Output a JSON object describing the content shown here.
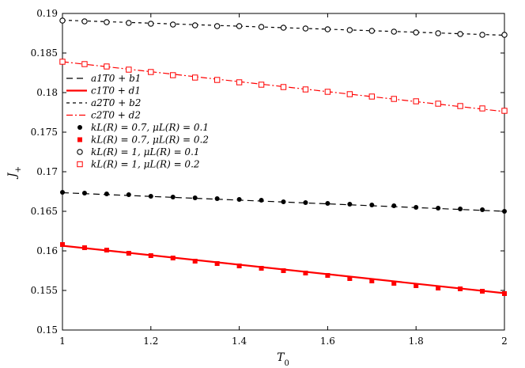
{
  "chart_data": {
    "type": "line",
    "xlabel": "T0",
    "ylabel": "J+",
    "xlim": [
      1,
      2
    ],
    "ylim": [
      0.15,
      0.19
    ],
    "xticks": [
      "1",
      "1.2",
      "1.4",
      "1.6",
      "1.8",
      "2"
    ],
    "yticks": [
      "0.15",
      "0.155",
      "0.16",
      "0.165",
      "0.17",
      "0.175",
      "0.18",
      "0.185",
      "0.19"
    ],
    "grid": false,
    "legend_position": "center-left",
    "legend": [
      "a1T0 + b1",
      "c1T0 + d1",
      "a2T0 + b2",
      "c2T0 + d2",
      "kL(R) = 0.7, μL(R) = 0.1",
      "kL(R) = 0.7, μL(R) = 0.2",
      "kL(R) = 1, μL(R) = 0.1",
      "kL(R) = 1, μL(R) = 0.2"
    ],
    "fit_lines": [
      {
        "legend_index": 0,
        "color": "#000000",
        "dash": "8,5",
        "width": 1.2,
        "x": [
          1,
          2
        ],
        "y": [
          0.16735,
          0.165
        ]
      },
      {
        "legend_index": 1,
        "color": "#ff0000",
        "dash": "",
        "width": 2.2,
        "x": [
          1,
          2
        ],
        "y": [
          0.16065,
          0.15465
        ]
      },
      {
        "legend_index": 2,
        "color": "#000000",
        "dash": "4,4",
        "width": 1.2,
        "x": [
          1,
          2
        ],
        "y": [
          0.18915,
          0.18725
        ]
      },
      {
        "legend_index": 3,
        "color": "#ff0000",
        "dash": "8,3,2,3",
        "width": 1.2,
        "x": [
          1,
          2
        ],
        "y": [
          0.1839,
          0.1776
        ]
      }
    ],
    "x": [
      1.0,
      1.05,
      1.1,
      1.15,
      1.2,
      1.25,
      1.3,
      1.35,
      1.4,
      1.45,
      1.5,
      1.55,
      1.6,
      1.65,
      1.7,
      1.75,
      1.8,
      1.85,
      1.9,
      1.95,
      2.0
    ],
    "series": [
      {
        "legend_index": 4,
        "marker": "filled-circle",
        "color": "#000000",
        "values": [
          0.1674,
          0.1673,
          0.1672,
          0.1671,
          0.1669,
          0.1668,
          0.1667,
          0.1666,
          0.1665,
          0.1664,
          0.1662,
          0.1661,
          0.166,
          0.1659,
          0.1658,
          0.1657,
          0.1655,
          0.1654,
          0.1653,
          0.1652,
          0.165
        ]
      },
      {
        "legend_index": 5,
        "marker": "filled-square",
        "color": "#ff0000",
        "values": [
          0.1608,
          0.1604,
          0.1601,
          0.1597,
          0.1594,
          0.1591,
          0.1587,
          0.1584,
          0.1581,
          0.1578,
          0.1575,
          0.1572,
          0.1569,
          0.1565,
          0.1562,
          0.1559,
          0.1556,
          0.1553,
          0.1552,
          0.1549,
          0.1546
        ]
      },
      {
        "legend_index": 6,
        "marker": "open-circle",
        "color": "#000000",
        "values": [
          0.1891,
          0.189,
          0.1889,
          0.1888,
          0.1887,
          0.1886,
          0.1885,
          0.1884,
          0.1884,
          0.1883,
          0.1882,
          0.1881,
          0.188,
          0.1879,
          0.1878,
          0.1877,
          0.1876,
          0.1875,
          0.1874,
          0.1873,
          0.1873
        ]
      },
      {
        "legend_index": 7,
        "marker": "open-square",
        "color": "#ff0000",
        "values": [
          0.1839,
          0.1836,
          0.1833,
          0.1829,
          0.1826,
          0.1822,
          0.1819,
          0.1816,
          0.1813,
          0.181,
          0.1807,
          0.1804,
          0.1801,
          0.1798,
          0.1795,
          0.1792,
          0.1789,
          0.1786,
          0.1783,
          0.178,
          0.1777
        ]
      }
    ]
  }
}
